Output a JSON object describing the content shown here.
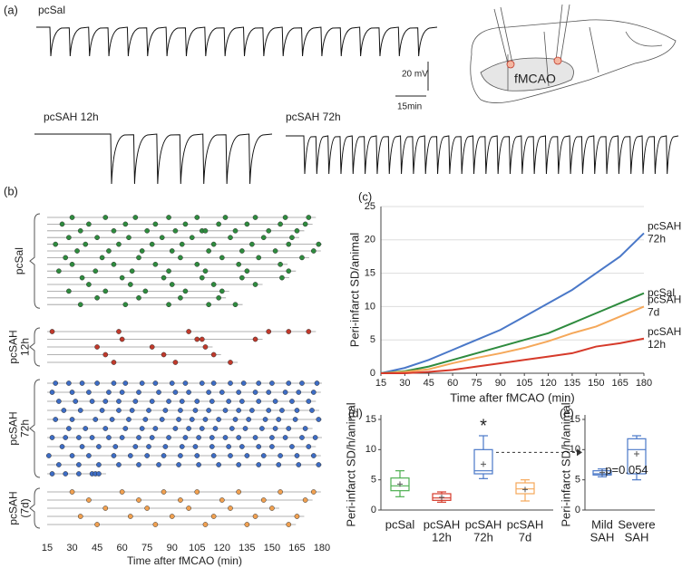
{
  "panel_a": {
    "panel": "(a)",
    "trace_labels": [
      "pcSal",
      "pcSAH 12h",
      "pcSAH 72h"
    ],
    "scale_v": "20 mV",
    "scale_t": "15min",
    "region": "fMCAO"
  },
  "chart_data": [
    {
      "type": "raster",
      "panel": "(b)",
      "xlabel": "Time after fMCAO (min)",
      "xlim": [
        15,
        180
      ],
      "xticks": [
        15,
        30,
        45,
        60,
        75,
        90,
        105,
        120,
        135,
        150,
        165,
        180
      ],
      "groups": [
        {
          "name": [
            "pcSal"
          ],
          "color": "#2e8b3e",
          "rows": [
            [
              30,
              50,
              68,
              88,
              105,
              122,
              140,
              158,
              172
            ],
            [
              24,
              40,
              62,
              80,
              98,
              118,
              135,
              155,
              170
            ],
            [
              35,
              55,
              75,
              92,
              108,
              110,
              128,
              148,
              165
            ],
            [
              28,
              45,
              64,
              84,
              102,
              125,
              145,
              162
            ],
            [
              20,
              38,
              58,
              78,
              96,
              115,
              138,
              160,
              178
            ],
            [
              33,
              52,
              72,
              90,
              112,
              132,
              152,
              175
            ],
            [
              26,
              48,
              70,
              95,
              120,
              142,
              168
            ],
            [
              30,
              55,
              80,
              105,
              130,
              155
            ],
            [
              22,
              44,
              66,
              88,
              110,
              135,
              160
            ],
            [
              36,
              60,
              85,
              108,
              132,
              156
            ],
            [
              40,
              65,
              90,
              115,
              140
            ],
            [
              28,
              50,
              74,
              98,
              120
            ],
            [
              45,
              70,
              95,
              118
            ],
            [
              35,
              62,
              88,
              112,
              128
            ]
          ]
        },
        {
          "name": [
            "pcSAH",
            "12h"
          ],
          "color": "#c0392b",
          "rows": [
            [
              18,
              58,
              100,
              148,
              160,
              172
            ],
            [
              60,
              105,
              108,
              140
            ],
            [
              45,
              78,
              110
            ],
            [
              50,
              85,
              115
            ],
            [
              55,
              92,
              125
            ]
          ]
        },
        {
          "name": [
            "pcSAH",
            "72h"
          ],
          "color": "#3d6cc4",
          "rows": [
            [
              20,
              28,
              36,
              45,
              55,
              62,
              72,
              80,
              90,
              98,
              108,
              115,
              125,
              133,
              142,
              150,
              160,
              168,
              177
            ],
            [
              18,
              30,
              40,
              52,
              60,
              70,
              82,
              92,
              100,
              112,
              120,
              130,
              140,
              148,
              158,
              166,
              175
            ],
            [
              22,
              32,
              42,
              50,
              58,
              68,
              78,
              88,
              96,
              105,
              114,
              124,
              132,
              142,
              152,
              162,
              172
            ],
            [
              25,
              35,
              48,
              58,
              66,
              76,
              86,
              95,
              104,
              112,
              122,
              130,
              138,
              148,
              156,
              165,
              174
            ],
            [
              20,
              30,
              44,
              54,
              64,
              74,
              84,
              94,
              102,
              110,
              118,
              128,
              136,
              146,
              154,
              164,
              178
            ],
            [
              28,
              38,
              50,
              62,
              72,
              80,
              92,
              100,
              108,
              116,
              126,
              134,
              144,
              152,
              160,
              170
            ],
            [
              18,
              26,
              34,
              42,
              52,
              60,
              70,
              78,
              88,
              98,
              106,
              114,
              122,
              130,
              140,
              150,
              158,
              168,
              176
            ],
            [
              24,
              36,
              46,
              56,
              68,
              76,
              86,
              96,
              104,
              114,
              124,
              132,
              142,
              150,
              162,
              172
            ],
            [
              16,
              30,
              40,
              55,
              65,
              75,
              85,
              95,
              105,
              115,
              125,
              135,
              145,
              155,
              165,
              175
            ],
            [
              22,
              34,
              46,
              58,
              70,
              82,
              94,
              106,
              118,
              130,
              142,
              154,
              166,
              178
            ],
            [
              18,
              26,
              34,
              42,
              44,
              46
            ]
          ]
        },
        {
          "name": [
            "pcSAH",
            "(7d)"
          ],
          "color": "#f0a050",
          "rows": [
            [
              30,
              60,
              85,
              105,
              130,
              155,
              175
            ],
            [
              40,
              70,
              95,
              120,
              145,
              170
            ],
            [
              50,
              75,
              100,
              125,
              150
            ],
            [
              35,
              65,
              90,
              115,
              140,
              165
            ],
            [
              45,
              80,
              110,
              135,
              160
            ]
          ]
        }
      ]
    },
    {
      "type": "line",
      "panel": "(c)",
      "xlabel": "Time after fMCAO (min)",
      "ylabel": "Peri-infarct SD/animal",
      "xlim": [
        15,
        180
      ],
      "ylim": [
        0,
        25
      ],
      "xticks": [
        15,
        30,
        45,
        60,
        75,
        90,
        105,
        120,
        135,
        150,
        165,
        180
      ],
      "yticks": [
        0,
        5,
        10,
        15,
        20,
        25
      ],
      "grid": true,
      "x": [
        15,
        30,
        45,
        60,
        75,
        90,
        105,
        120,
        135,
        150,
        165,
        180
      ],
      "series": [
        {
          "name": [
            "pcSAH",
            "72h"
          ],
          "color": "#4a78c8",
          "values": [
            0,
            0.8,
            2,
            3.5,
            5,
            6.5,
            8.5,
            10.5,
            12.5,
            15,
            17.5,
            21
          ]
        },
        {
          "name": [
            "pcSal"
          ],
          "color": "#2e8b3e",
          "values": [
            0,
            0.3,
            1,
            2,
            3,
            4,
            5,
            6,
            7.5,
            9,
            10.5,
            12
          ]
        },
        {
          "name": [
            "pcSAH",
            "7d"
          ],
          "color": "#f5a85a",
          "values": [
            0,
            0.2,
            0.6,
            1.5,
            2.3,
            3,
            3.8,
            4.8,
            6,
            7,
            8.5,
            10
          ]
        },
        {
          "name": [
            "pcSAH",
            "12h"
          ],
          "color": "#d63a2a",
          "values": [
            0,
            0,
            0.2,
            0.5,
            1,
            1.5,
            2,
            2.5,
            3,
            4,
            4.5,
            5.2
          ]
        }
      ]
    },
    {
      "type": "box",
      "panel": "(d)",
      "ylabel": "Peri-infarct SD/h/animal",
      "ylim": [
        0,
        15
      ],
      "yticks": [
        0,
        5,
        10,
        15
      ],
      "categories": [
        [
          "pcSal"
        ],
        [
          "pcSAH",
          "12h"
        ],
        [
          "pcSAH",
          "72h"
        ],
        [
          "pcSAH",
          "7d"
        ]
      ],
      "boxes": [
        {
          "color": "#4caf50",
          "min": 2.2,
          "q1": 3.2,
          "median": 4,
          "q3": 5.3,
          "max": 6.5,
          "mean": 4.3
        },
        {
          "color": "#d63a2a",
          "min": 1.3,
          "q1": 1.6,
          "median": 2,
          "q3": 2.7,
          "max": 3,
          "mean": 2.1
        },
        {
          "color": "#4a78c8",
          "min": 5.2,
          "q1": 6,
          "median": 6.5,
          "q3": 10,
          "max": 12.3,
          "mean": 7.6
        },
        {
          "color": "#f5a85a",
          "min": 1.5,
          "q1": 2.7,
          "median": 3.5,
          "q3": 4.5,
          "max": 5,
          "mean": 3.4
        }
      ],
      "annotation": "*"
    },
    {
      "type": "box",
      "panel": "(e)",
      "ylabel": "Peri-infarct SD/h/animal",
      "ylim": [
        0,
        15
      ],
      "yticks": [
        0,
        5,
        10,
        15
      ],
      "categories": [
        [
          "Mild",
          "SAH"
        ],
        [
          "Severe",
          "SAH"
        ]
      ],
      "boxes": [
        {
          "color": "#4a78c8",
          "min": 5.5,
          "q1": 5.8,
          "median": 6,
          "q3": 6.5,
          "max": 6.8,
          "mean": 6.2
        },
        {
          "color": "#4a78c8",
          "min": 5,
          "q1": 6,
          "median": 10,
          "q3": 11.8,
          "max": 12.3,
          "mean": 9.3
        }
      ],
      "annotation": "p=0.054"
    }
  ]
}
